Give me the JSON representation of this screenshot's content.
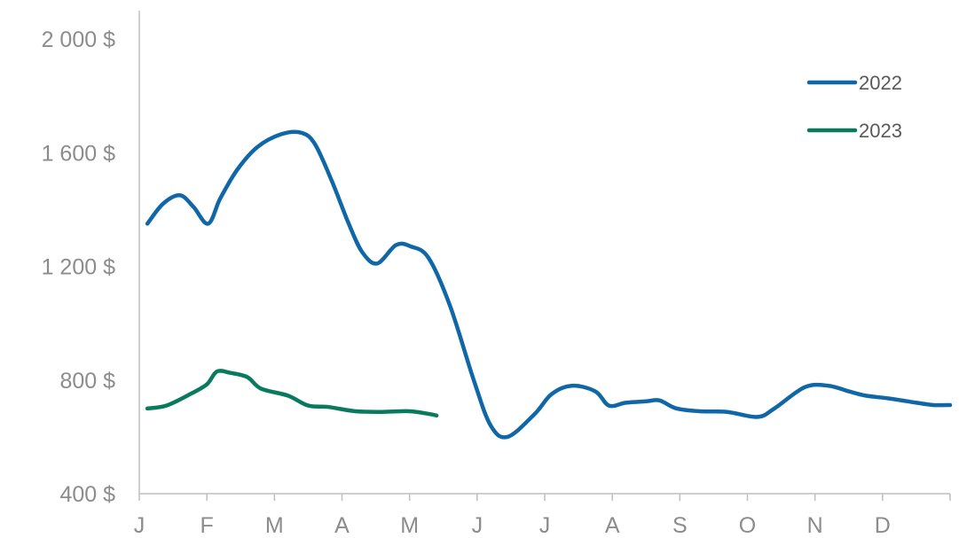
{
  "chart_data": {
    "type": "line",
    "x_axis": {
      "month_labels": [
        "J",
        "F",
        "M",
        "A",
        "M",
        "J",
        "J",
        "A",
        "S",
        "O",
        "N",
        "D"
      ],
      "range": [
        0,
        12
      ]
    },
    "y_axis": {
      "ticks": [
        400,
        800,
        1200,
        1600,
        2000
      ],
      "tick_labels": [
        "400 $",
        "800 $",
        "1 200 $",
        "1 600 $",
        "2 000 $"
      ],
      "range": [
        400,
        2000
      ]
    },
    "grid": false,
    "legend": {
      "position": "top-right"
    },
    "series": [
      {
        "name": "2022",
        "color": "#0f67a8",
        "points": [
          [
            0.12,
            1350
          ],
          [
            0.35,
            1420
          ],
          [
            0.6,
            1450
          ],
          [
            0.8,
            1410
          ],
          [
            1.02,
            1350
          ],
          [
            1.2,
            1440
          ],
          [
            1.45,
            1540
          ],
          [
            1.75,
            1620
          ],
          [
            2.1,
            1665
          ],
          [
            2.4,
            1670
          ],
          [
            2.6,
            1630
          ],
          [
            2.85,
            1500
          ],
          [
            3.1,
            1350
          ],
          [
            3.3,
            1250
          ],
          [
            3.52,
            1210
          ],
          [
            3.8,
            1275
          ],
          [
            4.02,
            1270
          ],
          [
            4.28,
            1230
          ],
          [
            4.6,
            1060
          ],
          [
            4.95,
            800
          ],
          [
            5.2,
            640
          ],
          [
            5.45,
            600
          ],
          [
            5.85,
            680
          ],
          [
            6.1,
            750
          ],
          [
            6.4,
            780
          ],
          [
            6.75,
            760
          ],
          [
            6.95,
            710
          ],
          [
            7.2,
            720
          ],
          [
            7.5,
            725
          ],
          [
            7.7,
            728
          ],
          [
            7.95,
            700
          ],
          [
            8.3,
            690
          ],
          [
            8.7,
            688
          ],
          [
            9.15,
            670
          ],
          [
            9.4,
            700
          ],
          [
            9.85,
            775
          ],
          [
            10.2,
            780
          ],
          [
            10.5,
            760
          ],
          [
            10.75,
            745
          ],
          [
            11.1,
            735
          ],
          [
            11.5,
            720
          ],
          [
            11.75,
            712
          ],
          [
            12.0,
            712
          ]
        ]
      },
      {
        "name": "2023",
        "color": "#0a7a5e",
        "points": [
          [
            0.12,
            700
          ],
          [
            0.4,
            710
          ],
          [
            0.75,
            750
          ],
          [
            1.0,
            785
          ],
          [
            1.15,
            830
          ],
          [
            1.35,
            825
          ],
          [
            1.6,
            810
          ],
          [
            1.8,
            770
          ],
          [
            2.2,
            745
          ],
          [
            2.5,
            710
          ],
          [
            2.8,
            705
          ],
          [
            3.2,
            690
          ],
          [
            3.6,
            688
          ],
          [
            4.0,
            690
          ],
          [
            4.3,
            680
          ],
          [
            4.4,
            675
          ]
        ]
      }
    ]
  }
}
